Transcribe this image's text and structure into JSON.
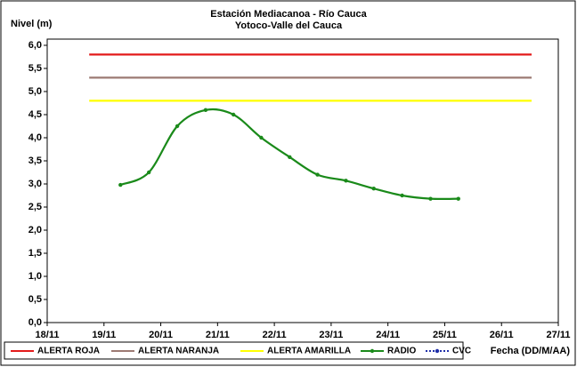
{
  "chart_data": {
    "type": "line",
    "title": [
      "Estación Mediacanoa - Río Cauca",
      "Yotoco-Valle del Cauca"
    ],
    "y_label": "Nivel (m)",
    "x_label": "Fecha (DD/M/AA)",
    "xlim": [
      18,
      27
    ],
    "xticks": [
      {
        "value": 18,
        "label": "18/11"
      },
      {
        "value": 19,
        "label": "19/11"
      },
      {
        "value": 20,
        "label": "20/11"
      },
      {
        "value": 21,
        "label": "21/11"
      },
      {
        "value": 22,
        "label": "22/11"
      },
      {
        "value": 23,
        "label": "23/11"
      },
      {
        "value": 24,
        "label": "24/11"
      },
      {
        "value": 25,
        "label": "25/11"
      },
      {
        "value": 26,
        "label": "26/11"
      },
      {
        "value": 27,
        "label": "27/11"
      }
    ],
    "ylim": [
      0,
      6
    ],
    "yticks": [
      {
        "value": 0,
        "label": "0,0"
      },
      {
        "value": 0.5,
        "label": "0,5"
      },
      {
        "value": 1,
        "label": "1,0"
      },
      {
        "value": 1.5,
        "label": "1,5"
      },
      {
        "value": 2,
        "label": "2,0"
      },
      {
        "value": 2.5,
        "label": "2,5"
      },
      {
        "value": 3,
        "label": "3,0"
      },
      {
        "value": 3.5,
        "label": "3,5"
      },
      {
        "value": 4,
        "label": "4,0"
      },
      {
        "value": 4.5,
        "label": "4,5"
      },
      {
        "value": 5,
        "label": "5,0"
      },
      {
        "value": 5.5,
        "label": "5,5"
      },
      {
        "value": 6,
        "label": "6,0"
      }
    ],
    "series": [
      {
        "name": "ALERTA ROJA",
        "color": "#e31a1a",
        "x": [
          18.74,
          26.53
        ],
        "values": [
          5.8,
          5.8
        ]
      },
      {
        "name": "ALERTA NARANJA",
        "color": "#9c7a73",
        "x": [
          18.74,
          26.53
        ],
        "values": [
          5.3,
          5.3
        ]
      },
      {
        "name": "ALERTA AMARILLA",
        "color": "#ffff00",
        "x": [
          18.74,
          26.53
        ],
        "values": [
          4.8,
          4.8
        ]
      },
      {
        "name": "RADIO",
        "color": "#1a8a1a",
        "markers": true,
        "smooth": true,
        "x": [
          19.29,
          19.79,
          20.29,
          20.79,
          21.28,
          21.77,
          22.27,
          22.76,
          23.26,
          23.75,
          24.25,
          24.75,
          25.24
        ],
        "values": [
          2.98,
          3.25,
          4.25,
          4.6,
          4.5,
          4.0,
          3.58,
          3.2,
          3.07,
          2.9,
          2.75,
          2.68,
          2.68
        ]
      },
      {
        "name": "CVC",
        "color": "#1f2fa8",
        "markers": true,
        "dashed": true,
        "x": [],
        "values": []
      }
    ]
  }
}
